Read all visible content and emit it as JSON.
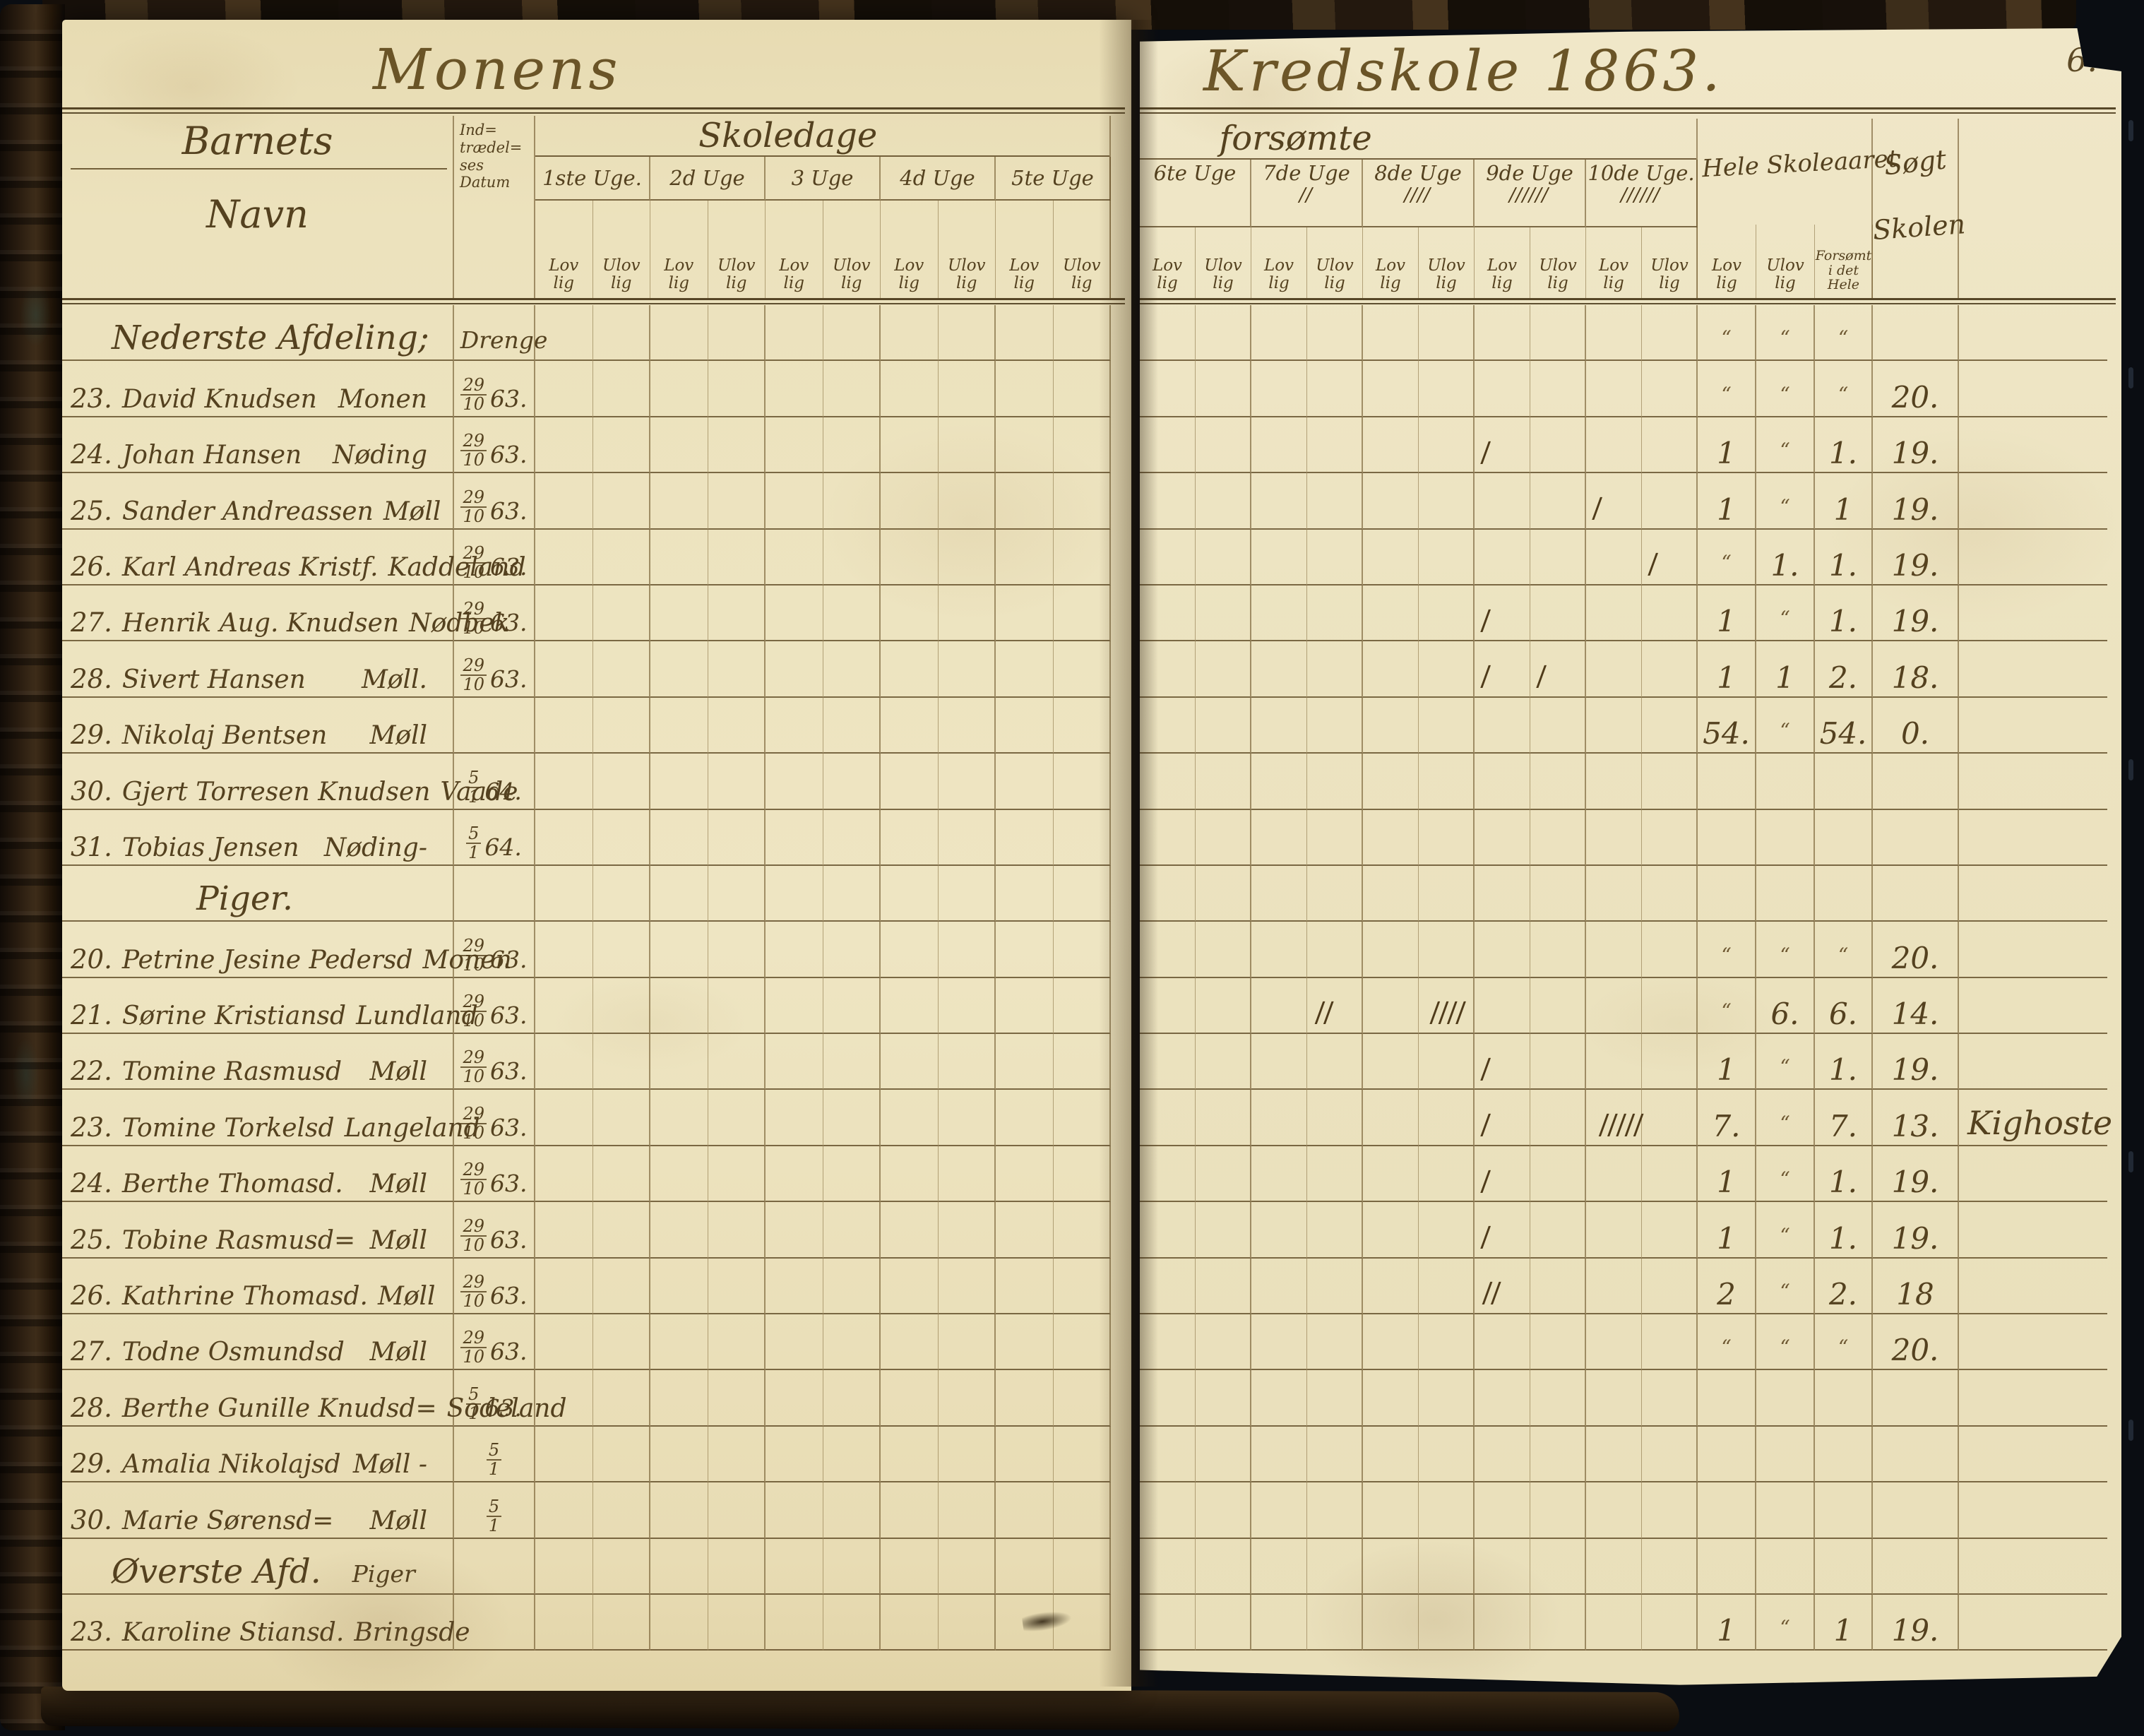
{
  "page_number": "6.",
  "ditto": "“",
  "colors": {
    "paper": "#ece2bd",
    "ink": "#54411f",
    "line": "#5a431f",
    "background": "#0a0d12"
  },
  "left_page": {
    "title": "Monens",
    "header": {
      "name_label_top": "Barnets",
      "name_label_bottom": "Navn",
      "datum_lines": [
        "Ind=",
        "trædel=",
        "ses",
        "Datum"
      ],
      "span_label": "Skoledage",
      "weeks": [
        "1ste Uge.",
        "2d Uge",
        "3 Uge",
        "4d Uge",
        "5te Uge"
      ],
      "sub_lovlig": [
        "Lov",
        "lig"
      ],
      "sub_ulovlig": [
        "Ulov",
        "lig"
      ]
    }
  },
  "right_page": {
    "title": "Kredskole 1863.",
    "header": {
      "span_label": "forsømte",
      "weeks": [
        {
          "label": "6te Uge",
          "tally": ""
        },
        {
          "label": "7de Uge",
          "tally": "II"
        },
        {
          "label": "8de Uge",
          "tally": "IIII"
        },
        {
          "label": "9de Uge",
          "tally": "IIIIII"
        },
        {
          "label": "10de Uge.",
          "tally": "IIIIII"
        }
      ],
      "hele_label": "Hele Skoleaaret",
      "hele_subs": [
        [
          "Lov",
          "lig"
        ],
        [
          "Ulov",
          "lig"
        ],
        [
          "Forsømt",
          "i det",
          "Hele"
        ]
      ],
      "sogt_top": "Søgt",
      "sogt_bottom": "Skolen"
    }
  },
  "rows": [
    {
      "type": "section",
      "label": "Nederste Afdeling;",
      "label2": "Drenge",
      "hele": [
        "“",
        "“",
        "“"
      ],
      "sogt": ""
    },
    {
      "num": "23.",
      "name": "David Knudsen",
      "place": "Monen",
      "date": {
        "d": "29",
        "m": "10",
        "y": "63."
      },
      "hele": [
        "“",
        "“",
        "“"
      ],
      "sogt": "20."
    },
    {
      "num": "24.",
      "name": "Johan Hansen",
      "place": "Nøding",
      "date": {
        "d": "29",
        "m": "10",
        "y": "63."
      },
      "marks": {
        "6": "I"
      },
      "hele": [
        "1",
        "“",
        "1."
      ],
      "sogt": "19."
    },
    {
      "num": "25.",
      "name": "Sander Andreassen",
      "place": "Møll",
      "date": {
        "d": "29",
        "m": "10",
        "y": "63."
      },
      "marks": {
        "8": "I"
      },
      "hele": [
        "1",
        "“",
        "1"
      ],
      "sogt": "19."
    },
    {
      "num": "26.",
      "name": "Karl Andreas Kristf.",
      "place": "Kaddeland",
      "date": {
        "d": "29",
        "m": "10",
        "y": "63."
      },
      "marks": {
        "9": "I"
      },
      "hele": [
        "“",
        "1.",
        "1."
      ],
      "sogt": "19."
    },
    {
      "num": "27.",
      "name": "Henrik Aug. Knudsen",
      "place": "Nødbek",
      "date": {
        "d": "29",
        "m": "10",
        "y": "63."
      },
      "marks": {
        "6": "I"
      },
      "hele": [
        "1",
        "“",
        "1."
      ],
      "sogt": "19."
    },
    {
      "num": "28.",
      "name": "Sivert Hansen",
      "place": "Møll.",
      "date": {
        "d": "29",
        "m": "10",
        "y": "63."
      },
      "marks": {
        "6": "I",
        "7": "I"
      },
      "hele": [
        "1",
        "1",
        "2."
      ],
      "sogt": "18."
    },
    {
      "num": "29.",
      "name": "Nikolaj Bentsen",
      "place": "Møll",
      "hele": [
        "54.",
        "“",
        "54."
      ],
      "sogt": "0."
    },
    {
      "num": "30.",
      "name": "Gjert Torresen Knudsen",
      "place": "Vaade",
      "date": {
        "d": "5",
        "m": "1",
        "y": "64."
      }
    },
    {
      "num": "31.",
      "name": "Tobias Jensen",
      "place": "Nøding-",
      "date": {
        "d": "5",
        "m": "1",
        "y": "64."
      }
    },
    {
      "type": "section",
      "label": "Piger.",
      "center": true
    },
    {
      "num": "20.",
      "name": "Petrine Jesine Pedersd",
      "place": "Monen",
      "date": {
        "d": "29",
        "m": "10",
        "y": "63."
      },
      "hele": [
        "“",
        "“",
        "“"
      ],
      "sogt": "20."
    },
    {
      "num": "21.",
      "name": "Sørine Kristiansd",
      "place": "Lundland",
      "date": {
        "d": "29",
        "m": "10",
        "y": "63."
      },
      "marks": {
        "3": "II",
        "5": "IIII"
      },
      "hele": [
        "“",
        "6.",
        "6."
      ],
      "sogt": "14."
    },
    {
      "num": "22.",
      "name": "Tomine Rasmusd",
      "place": "Møll",
      "date": {
        "d": "29",
        "m": "10",
        "y": "63."
      },
      "marks": {
        "6": "I"
      },
      "hele": [
        "1",
        "“",
        "1."
      ],
      "sogt": "19."
    },
    {
      "num": "23.",
      "name": "Tomine Torkelsd",
      "place": "Langeland",
      "date": {
        "d": "29",
        "m": "10",
        "y": "63."
      },
      "marks": {
        "6": "I",
        "8": "IIIII"
      },
      "hele": [
        "7.",
        "“",
        "7."
      ],
      "sogt": "13.",
      "remark": "Kighoste"
    },
    {
      "num": "24.",
      "name": "Berthe Thomasd.",
      "place": "Møll",
      "date": {
        "d": "29",
        "m": "10",
        "y": "63."
      },
      "marks": {
        "6": "I"
      },
      "hele": [
        "1",
        "“",
        "1."
      ],
      "sogt": "19."
    },
    {
      "num": "25.",
      "name": "Tobine Rasmusd=",
      "place": "Møll",
      "date": {
        "d": "29",
        "m": "10",
        "y": "63."
      },
      "marks": {
        "6": "I"
      },
      "hele": [
        "1",
        "“",
        "1."
      ],
      "sogt": "19."
    },
    {
      "num": "26.",
      "name": "Kathrine Thomasd.",
      "place": "Møll",
      "date": {
        "d": "29",
        "m": "10",
        "y": "63."
      },
      "marks": {
        "6": "II"
      },
      "hele": [
        "2",
        "“",
        "2."
      ],
      "sogt": "18"
    },
    {
      "num": "27.",
      "name": "Todne Osmundsd",
      "place": "Møll",
      "date": {
        "d": "29",
        "m": "10",
        "y": "63."
      },
      "hele": [
        "“",
        "“",
        "“"
      ],
      "sogt": "20."
    },
    {
      "num": "28.",
      "name": "Berthe Gunille Knudsd=",
      "place": "Sodeland",
      "date": {
        "d": "5",
        "m": "1",
        "y": "63."
      }
    },
    {
      "num": "29.",
      "name": "Amalia Nikolajsd",
      "place": "Møll -",
      "date": {
        "d": "5",
        "m": "1",
        "y": ""
      }
    },
    {
      "num": "30.",
      "name": "Marie Sørensd=",
      "place": "Møll",
      "date": {
        "d": "5",
        "m": "1",
        "y": ""
      }
    },
    {
      "type": "section",
      "label": "Øverste Afd.",
      "label2": "Piger"
    },
    {
      "num": "23.",
      "name": "Karoline Stiansd.",
      "place": "Bringsde",
      "hele": [
        "1",
        "“",
        "1"
      ],
      "sogt": "19."
    }
  ]
}
